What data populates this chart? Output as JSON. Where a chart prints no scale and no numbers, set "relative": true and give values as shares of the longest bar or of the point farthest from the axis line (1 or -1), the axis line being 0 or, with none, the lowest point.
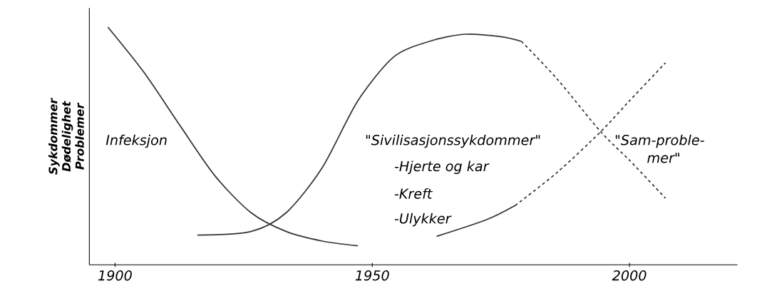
{
  "chart_data": {
    "type": "line",
    "relative": true,
    "ylabel": "Sykdommer Dødelighet Problemer",
    "xlim": [
      1895,
      2021
    ],
    "xticks": [
      1900,
      1950,
      2000
    ],
    "series": [
      {
        "color": "#333333",
        "line_style": "solid",
        "x": [
          1898.6,
          1905.6,
          1912.5,
          1919.4,
          1926.4,
          1933.3,
          1940.3,
          1947.2
        ],
        "values": [
          1.0,
          0.81,
          0.59,
          0.375,
          0.22,
          0.14,
          0.1,
          0.08
        ]
      },
      {
        "color": "#333333",
        "line_style": "solid",
        "x": [
          1916,
          1926.4,
          1933.3,
          1940.3,
          1947.2,
          1954.2,
          1961.1,
          1968,
          1975,
          1979
        ],
        "values": [
          0.125,
          0.14,
          0.22,
          0.41,
          0.69,
          0.875,
          0.94,
          0.97,
          0.96,
          0.94
        ]
      },
      {
        "color": "#333333",
        "line_style": "dashed",
        "x": [
          1979,
          1986,
          1994.4,
          2000,
          2007
        ],
        "values": [
          0.94,
          0.78,
          0.56,
          0.44,
          0.28
        ]
      },
      {
        "color": "#333333",
        "line_style": "solid",
        "x": [
          1962.5,
          1972.2,
          1977.8
        ],
        "values": [
          0.12,
          0.19,
          0.25
        ]
      },
      {
        "color": "#333333",
        "line_style": "dashed",
        "x": [
          1977.8,
          1986,
          1994.4,
          2000,
          2007
        ],
        "values": [
          0.25,
          0.39,
          0.56,
          0.69,
          0.85
        ]
      }
    ],
    "annotations": [
      "Infeksjon",
      "\"Sivilisasjonssykdommer\"",
      "-Hjerte og kar",
      "-Kreft",
      "-Ulykker",
      "\"Sam-proble-",
      "mer\""
    ]
  }
}
